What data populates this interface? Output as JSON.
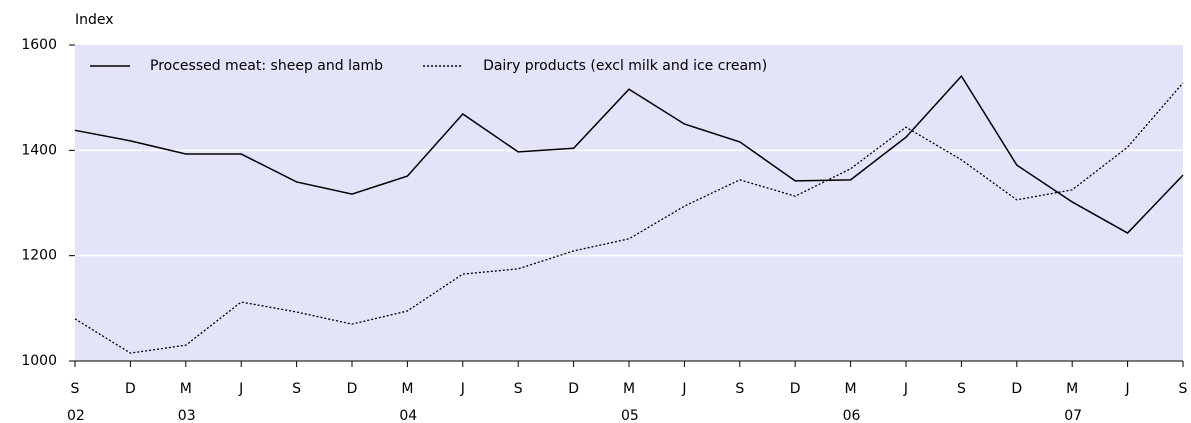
{
  "chart_data": {
    "type": "line",
    "y_label": "Index",
    "categories": [
      "S",
      "D",
      "M",
      "J",
      "S",
      "D",
      "M",
      "J",
      "S",
      "D",
      "M",
      "J",
      "S",
      "D",
      "M",
      "J",
      "S",
      "D",
      "M",
      "J",
      "S"
    ],
    "years": [
      "02",
      null,
      "03",
      null,
      null,
      null,
      "04",
      null,
      null,
      null,
      "05",
      null,
      null,
      null,
      "06",
      null,
      null,
      null,
      "07",
      null,
      null
    ],
    "series": [
      {
        "name": "Processed meat: sheep and lamb",
        "color": "#000000",
        "line_style": "solid",
        "values": [
          1438,
          1418,
          1393,
          1393,
          1340,
          1317,
          1351,
          1469,
          1397,
          1404,
          1516,
          1450,
          1416,
          1342,
          1344,
          1425,
          1541,
          1372,
          1302,
          1243,
          1353
        ]
      },
      {
        "name": "Dairy products (excl milk and ice cream)",
        "color": "#000000",
        "line_style": "dotted",
        "values": [
          1080,
          1015,
          1030,
          1112,
          1093,
          1070,
          1095,
          1165,
          1175,
          1209,
          1232,
          1294,
          1344,
          1313,
          1365,
          1444,
          1382,
          1306,
          1325,
          1406,
          1528
        ]
      }
    ],
    "ylim": [
      1000,
      1600
    ],
    "yticks": [
      1000,
      1200,
      1400,
      1600
    ],
    "grid": true,
    "background": "#e3e3f9",
    "legend": "top-left"
  }
}
